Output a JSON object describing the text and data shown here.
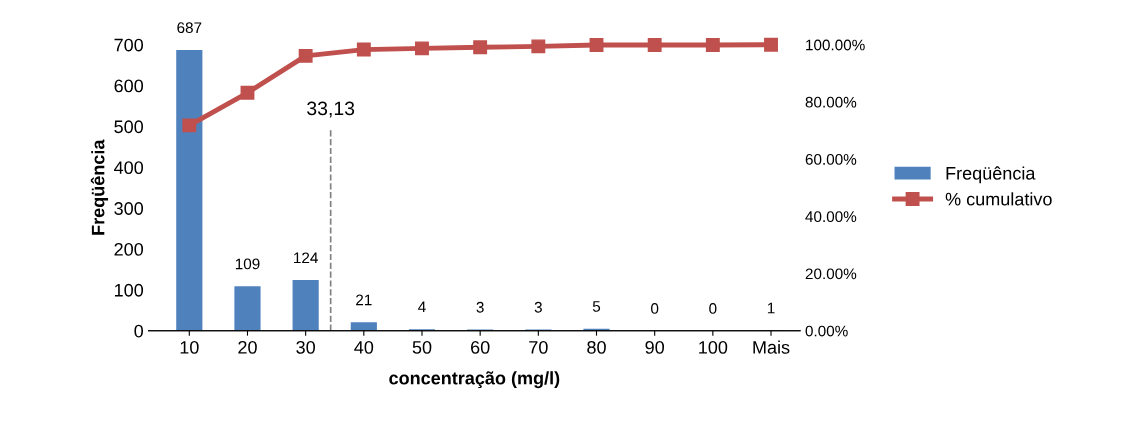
{
  "chart_data": {
    "type": "bar",
    "xlabel": "concentração (mg/l)",
    "ylabel": "Freqüência",
    "categories": [
      "10",
      "20",
      "30",
      "40",
      "50",
      "60",
      "70",
      "80",
      "90",
      "100",
      "Mais"
    ],
    "series": [
      {
        "name": "Freqüência",
        "color": "#4f81bd",
        "values": [
          687,
          109,
          124,
          21,
          4,
          3,
          3,
          5,
          0,
          0,
          1
        ],
        "value_labels": [
          "687",
          "109",
          "124",
          "21",
          "4",
          "3",
          "3",
          "5",
          "0",
          "0",
          "1"
        ]
      },
      {
        "name": "% cumulativo",
        "type": "line",
        "axis": "y2",
        "color": "#c0504d",
        "values": [
          71.8,
          83.2,
          96.1,
          98.3,
          98.7,
          99.1,
          99.4,
          99.9,
          99.9,
          99.9,
          100
        ]
      }
    ],
    "ylim": [
      0,
      700
    ],
    "yticks": [
      0,
      100,
      200,
      300,
      400,
      500,
      600,
      700
    ],
    "y2lim": [
      0,
      100
    ],
    "y2ticks": [
      {
        "value": 0,
        "label": "0.00%"
      },
      {
        "value": 20,
        "label": "20.00%"
      },
      {
        "value": 40,
        "label": "40.00%"
      },
      {
        "value": 60,
        "label": "60.00%"
      },
      {
        "value": 80,
        "label": "80.00%"
      },
      {
        "value": 100,
        "label": "100.00%"
      }
    ],
    "annotations": [
      "33,13"
    ],
    "marker": "square",
    "line_style": "solid",
    "grid": false,
    "legend": "right"
  }
}
